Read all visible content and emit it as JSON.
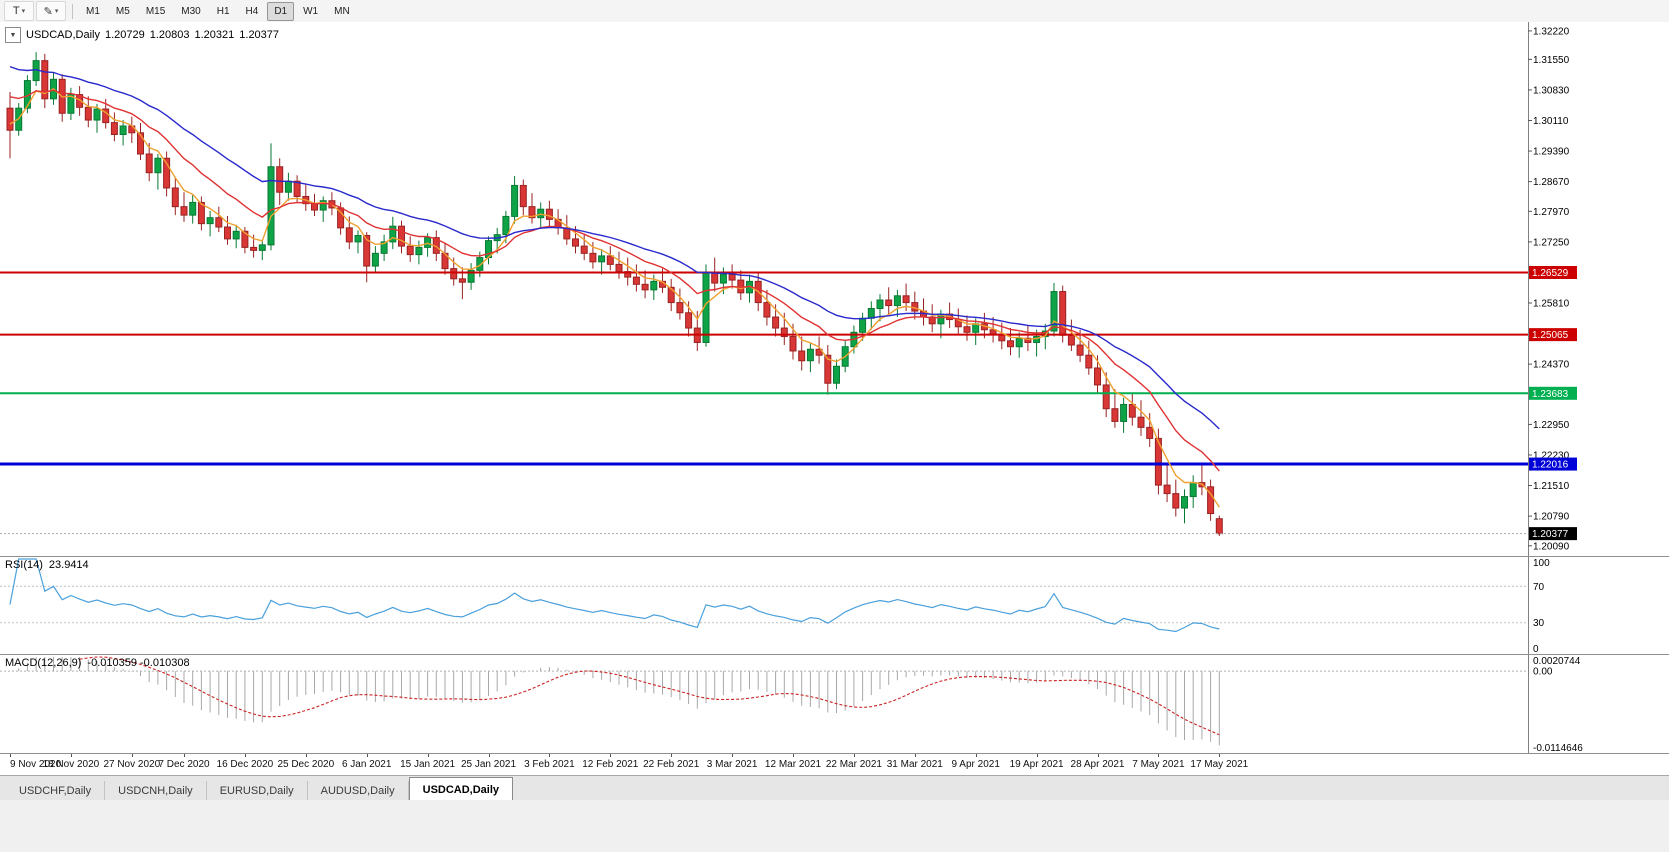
{
  "toolbar": {
    "tool_buttons": [
      {
        "name": "chart-tool-button",
        "icon": "chart-tool-icon",
        "glyph": "T",
        "caret": "▾"
      },
      {
        "name": "draw-tool-button",
        "icon": "pencil-icon",
        "glyph": "✎",
        "caret": "▾"
      }
    ],
    "timeframes": [
      "M1",
      "M5",
      "M15",
      "M30",
      "H1",
      "H4",
      "D1",
      "W1",
      "MN"
    ],
    "active_timeframe": "D1"
  },
  "symbol_bar": {
    "collapse_icon": "▼",
    "symbol": "USDCAD,Daily",
    "open": "1.20729",
    "high": "1.20803",
    "low": "1.20321",
    "close": "1.20377"
  },
  "indicators": {
    "rsi": {
      "label": "RSI(14)",
      "value": "23.9414",
      "color": "#4aa0dc",
      "levels": [
        {
          "text": "100",
          "value": 100
        },
        {
          "text": "70",
          "value": 70
        },
        {
          "text": "30",
          "value": 30
        },
        {
          "text": "0",
          "value": 0
        }
      ]
    },
    "macd": {
      "label": "MACD(12,26,9)",
      "values": "-0.010359 -0.010308",
      "signal_color": "#cc2222",
      "hist_color": "#a8a8a8",
      "axis": [
        {
          "text": "0.0020744",
          "value": 0.0020744
        },
        {
          "text": "0.00",
          "value": 0
        },
        {
          "text": "-0.0114646",
          "value": -0.0114646
        }
      ]
    }
  },
  "tabs": {
    "items": [
      {
        "label": "USDCHF,Daily",
        "active": false
      },
      {
        "label": "USDCNH,Daily",
        "active": false
      },
      {
        "label": "EURUSD,Daily",
        "active": false
      },
      {
        "label": "AUDUSD,Daily",
        "active": false
      },
      {
        "label": "USDCAD,Daily",
        "active": true
      }
    ]
  },
  "chart_data": {
    "type": "candlestick",
    "symbol": "USDCAD",
    "timeframe": "Daily",
    "last_quote": {
      "open": 1.20729,
      "high": 1.20803,
      "low": 1.20321,
      "close": 1.20377
    },
    "y_axis": {
      "min": 1.1985,
      "max": 1.3243,
      "ticks": [
        "1.32220",
        "1.31550",
        "1.30830",
        "1.30110",
        "1.29390",
        "1.28670",
        "1.27970",
        "1.27250",
        "1.25810",
        "1.24370",
        "1.22950",
        "1.22230",
        "1.21510",
        "1.20790",
        "1.20090"
      ]
    },
    "x_axis": {
      "labels": [
        {
          "text": "9 Nov 2020",
          "index": 0
        },
        {
          "text": "18 Nov 2020",
          "index": 7
        },
        {
          "text": "27 Nov 2020",
          "index": 14
        },
        {
          "text": "7 Dec 2020",
          "index": 20
        },
        {
          "text": "16 Dec 2020",
          "index": 27
        },
        {
          "text": "25 Dec 2020",
          "index": 34
        },
        {
          "text": "6 Jan 2021",
          "index": 41
        },
        {
          "text": "15 Jan 2021",
          "index": 48
        },
        {
          "text": "25 Jan 2021",
          "index": 55
        },
        {
          "text": "3 Feb 2021",
          "index": 62
        },
        {
          "text": "12 Feb 2021",
          "index": 69
        },
        {
          "text": "22 Feb 2021",
          "index": 76
        },
        {
          "text": "3 Mar 2021",
          "index": 83
        },
        {
          "text": "12 Mar 2021",
          "index": 90
        },
        {
          "text": "22 Mar 2021",
          "index": 97
        },
        {
          "text": "31 Mar 2021",
          "index": 104
        },
        {
          "text": "9 Apr 2021",
          "index": 111
        },
        {
          "text": "19 Apr 2021",
          "index": 118
        },
        {
          "text": "28 Apr 2021",
          "index": 125
        },
        {
          "text": "7 May 2021",
          "index": 132
        },
        {
          "text": "17 May 2021",
          "index": 139
        }
      ]
    },
    "horizontal_lines": [
      {
        "type": "level",
        "value": 1.26529,
        "label": "1.26529",
        "color": "#cc0000",
        "width": 2
      },
      {
        "type": "level",
        "value": 1.25065,
        "label": "1.25065",
        "color": "#cc0000",
        "width": 2
      },
      {
        "type": "level",
        "value": 1.23683,
        "label": "1.23683",
        "color": "#00b050",
        "width": 2
      },
      {
        "type": "level",
        "value": 1.22016,
        "label": "1.22016",
        "color": "#0000d8",
        "width": 3
      },
      {
        "type": "current",
        "value": 1.20377,
        "label": "1.20377",
        "color": "#aaaaaa",
        "badge_color": "#000000",
        "width": 1
      }
    ],
    "moving_averages": [
      {
        "name": "ma-fast",
        "period": 5,
        "color": "#f0a030",
        "seed": 1.301
      },
      {
        "name": "ma-mid",
        "period": 13,
        "color": "#e03232",
        "seed": 1.308
      },
      {
        "name": "ma-slow",
        "period": 26,
        "color": "#2929cc",
        "seed": 1.315
      }
    ],
    "rsi_period": 14,
    "macd": {
      "fast": 12,
      "slow": 26,
      "signal": 9,
      "range": [
        -0.0114646,
        0.0020744
      ]
    },
    "colors": {
      "up": "#0fa348",
      "up_stroke": "#077a33",
      "down": "#d93636",
      "down_stroke": "#992222"
    },
    "candles": [
      [
        1.304,
        1.3078,
        1.2922,
        1.2988
      ],
      [
        1.2988,
        1.3052,
        1.2975,
        1.304
      ],
      [
        1.304,
        1.3118,
        1.3028,
        1.3105
      ],
      [
        1.3105,
        1.3172,
        1.3092,
        1.3152
      ],
      [
        1.3152,
        1.3168,
        1.304,
        1.3062
      ],
      [
        1.3062,
        1.3125,
        1.3048,
        1.3108
      ],
      [
        1.3108,
        1.312,
        1.3008,
        1.3028
      ],
      [
        1.3028,
        1.3088,
        1.3012,
        1.3072
      ],
      [
        1.3072,
        1.3092,
        1.3022,
        1.3042
      ],
      [
        1.3042,
        1.3068,
        1.2995,
        1.3012
      ],
      [
        1.3012,
        1.305,
        1.2982,
        1.3038
      ],
      [
        1.3038,
        1.3062,
        1.2992,
        1.3006
      ],
      [
        1.3006,
        1.303,
        1.2962,
        1.2978
      ],
      [
        1.2978,
        1.3012,
        1.2952,
        1.2998
      ],
      [
        1.2998,
        1.302,
        1.2958,
        1.2982
      ],
      [
        1.2982,
        1.3005,
        1.2918,
        1.2932
      ],
      [
        1.2932,
        1.2958,
        1.2868,
        1.2888
      ],
      [
        1.2888,
        1.2932,
        1.2848,
        1.2922
      ],
      [
        1.2922,
        1.2938,
        1.2832,
        1.2852
      ],
      [
        1.2852,
        1.2878,
        1.2788,
        1.2808
      ],
      [
        1.2808,
        1.2842,
        1.2772,
        1.2788
      ],
      [
        1.2788,
        1.2836,
        1.2768,
        1.2818
      ],
      [
        1.2818,
        1.2832,
        1.2752,
        1.2768
      ],
      [
        1.2768,
        1.2798,
        1.2738,
        1.2782
      ],
      [
        1.2782,
        1.2808,
        1.2748,
        1.276
      ],
      [
        1.276,
        1.2786,
        1.2718,
        1.2732
      ],
      [
        1.2732,
        1.2765,
        1.271,
        1.275
      ],
      [
        1.275,
        1.276,
        1.2698,
        1.2712
      ],
      [
        1.2712,
        1.2742,
        1.2688,
        1.2705
      ],
      [
        1.2705,
        1.2728,
        1.2682,
        1.2718
      ],
      [
        1.2718,
        1.2957,
        1.2705,
        1.2902
      ],
      [
        1.2902,
        1.2922,
        1.2812,
        1.2842
      ],
      [
        1.2842,
        1.2888,
        1.2822,
        1.2868
      ],
      [
        1.2868,
        1.2882,
        1.2818,
        1.2832
      ],
      [
        1.2832,
        1.286,
        1.2798,
        1.2815
      ],
      [
        1.2815,
        1.2838,
        1.2786,
        1.28
      ],
      [
        1.28,
        1.2832,
        1.2772,
        1.2822
      ],
      [
        1.2822,
        1.2842,
        1.2788,
        1.2805
      ],
      [
        1.2805,
        1.2818,
        1.2742,
        1.2758
      ],
      [
        1.2758,
        1.2785,
        1.2708,
        1.2725
      ],
      [
        1.2725,
        1.2752,
        1.2698,
        1.274
      ],
      [
        1.274,
        1.2748,
        1.263,
        1.2668
      ],
      [
        1.2668,
        1.2715,
        1.2652,
        1.2698
      ],
      [
        1.2698,
        1.2742,
        1.268,
        1.2725
      ],
      [
        1.2725,
        1.2784,
        1.2708,
        1.2762
      ],
      [
        1.2762,
        1.2775,
        1.2698,
        1.2715
      ],
      [
        1.2715,
        1.2738,
        1.2678,
        1.2695
      ],
      [
        1.2695,
        1.2728,
        1.2672,
        1.2712
      ],
      [
        1.2712,
        1.2745,
        1.269,
        1.2735
      ],
      [
        1.2735,
        1.2752,
        1.268,
        1.2698
      ],
      [
        1.2698,
        1.2722,
        1.2648,
        1.2662
      ],
      [
        1.2662,
        1.2688,
        1.2622,
        1.2638
      ],
      [
        1.2638,
        1.2665,
        1.259,
        1.263
      ],
      [
        1.263,
        1.2675,
        1.2612,
        1.2658
      ],
      [
        1.2658,
        1.2702,
        1.2642,
        1.2688
      ],
      [
        1.2688,
        1.2738,
        1.2672,
        1.2728
      ],
      [
        1.2728,
        1.2758,
        1.2698,
        1.2742
      ],
      [
        1.2742,
        1.2798,
        1.2722,
        1.2785
      ],
      [
        1.2785,
        1.288,
        1.2768,
        1.2858
      ],
      [
        1.2858,
        1.2872,
        1.2788,
        1.2808
      ],
      [
        1.2808,
        1.284,
        1.2768,
        1.2782
      ],
      [
        1.2782,
        1.2818,
        1.2758,
        1.2802
      ],
      [
        1.2802,
        1.2822,
        1.2762,
        1.2778
      ],
      [
        1.2778,
        1.2802,
        1.2742,
        1.2758
      ],
      [
        1.2758,
        1.2788,
        1.2718,
        1.2732
      ],
      [
        1.2732,
        1.2762,
        1.2698,
        1.2715
      ],
      [
        1.2715,
        1.2742,
        1.2682,
        1.2698
      ],
      [
        1.2698,
        1.2725,
        1.2662,
        1.2678
      ],
      [
        1.2678,
        1.2708,
        1.2648,
        1.2692
      ],
      [
        1.2692,
        1.2715,
        1.2658,
        1.2672
      ],
      [
        1.2672,
        1.2702,
        1.2638,
        1.2655
      ],
      [
        1.2655,
        1.2688,
        1.2622,
        1.2642
      ],
      [
        1.2642,
        1.2672,
        1.2608,
        1.2625
      ],
      [
        1.2625,
        1.2658,
        1.2592,
        1.2612
      ],
      [
        1.2612,
        1.2648,
        1.2588,
        1.2632
      ],
      [
        1.2632,
        1.2662,
        1.2605,
        1.2618
      ],
      [
        1.2618,
        1.2638,
        1.2562,
        1.2582
      ],
      [
        1.2582,
        1.2615,
        1.2542,
        1.2558
      ],
      [
        1.2558,
        1.2585,
        1.2502,
        1.2522
      ],
      [
        1.2522,
        1.2562,
        1.2468,
        1.2488
      ],
      [
        1.2488,
        1.2672,
        1.2478,
        1.2652
      ],
      [
        1.2652,
        1.2688,
        1.2608,
        1.2628
      ],
      [
        1.2628,
        1.2665,
        1.2602,
        1.2648
      ],
      [
        1.2648,
        1.2672,
        1.2615,
        1.2635
      ],
      [
        1.2635,
        1.2658,
        1.2588,
        1.2605
      ],
      [
        1.2605,
        1.2648,
        1.2582,
        1.2632
      ],
      [
        1.2632,
        1.2652,
        1.2562,
        1.2582
      ],
      [
        1.2582,
        1.2612,
        1.2528,
        1.2548
      ],
      [
        1.2548,
        1.2578,
        1.2502,
        1.2522
      ],
      [
        1.2522,
        1.2558,
        1.2482,
        1.2502
      ],
      [
        1.2502,
        1.2532,
        1.2448,
        1.2468
      ],
      [
        1.2468,
        1.2502,
        1.2422,
        1.2445
      ],
      [
        1.2445,
        1.2488,
        1.2418,
        1.2472
      ],
      [
        1.2472,
        1.2502,
        1.2438,
        1.2458
      ],
      [
        1.2458,
        1.2482,
        1.2365,
        1.2392
      ],
      [
        1.2392,
        1.2448,
        1.2378,
        1.2432
      ],
      [
        1.2432,
        1.2492,
        1.2418,
        1.2478
      ],
      [
        1.2478,
        1.2528,
        1.2462,
        1.2512
      ],
      [
        1.2512,
        1.2558,
        1.2492,
        1.2545
      ],
      [
        1.2545,
        1.2585,
        1.2518,
        1.2568
      ],
      [
        1.2568,
        1.2602,
        1.2538,
        1.2588
      ],
      [
        1.2588,
        1.2618,
        1.2555,
        1.2575
      ],
      [
        1.2575,
        1.2612,
        1.2548,
        1.2598
      ],
      [
        1.2598,
        1.2627,
        1.2562,
        1.2582
      ],
      [
        1.2582,
        1.2608,
        1.2542,
        1.2562
      ],
      [
        1.2562,
        1.2592,
        1.2528,
        1.2548
      ],
      [
        1.2548,
        1.2578,
        1.2512,
        1.2532
      ],
      [
        1.2532,
        1.2565,
        1.2498,
        1.2555
      ],
      [
        1.2555,
        1.2582,
        1.2522,
        1.2542
      ],
      [
        1.2542,
        1.2568,
        1.2505,
        1.2525
      ],
      [
        1.2525,
        1.2552,
        1.2492,
        1.2512
      ],
      [
        1.2512,
        1.2545,
        1.2482,
        1.2532
      ],
      [
        1.2532,
        1.2558,
        1.2498,
        1.2518
      ],
      [
        1.2518,
        1.2548,
        1.2488,
        1.2508
      ],
      [
        1.2508,
        1.2535,
        1.2472,
        1.2492
      ],
      [
        1.2492,
        1.2522,
        1.2458,
        1.2478
      ],
      [
        1.2478,
        1.2512,
        1.2452,
        1.2498
      ],
      [
        1.2498,
        1.2528,
        1.2468,
        1.2488
      ],
      [
        1.2488,
        1.2518,
        1.2455,
        1.2502
      ],
      [
        1.2502,
        1.2532,
        1.2472,
        1.2515
      ],
      [
        1.2515,
        1.2628,
        1.2502,
        1.2608
      ],
      [
        1.2608,
        1.2622,
        1.2488,
        1.2505
      ],
      [
        1.2505,
        1.2542,
        1.2468,
        1.2482
      ],
      [
        1.2482,
        1.2518,
        1.2442,
        1.2458
      ],
      [
        1.2458,
        1.2492,
        1.2412,
        1.2428
      ],
      [
        1.2428,
        1.2458,
        1.2368,
        1.2388
      ],
      [
        1.2388,
        1.2418,
        1.2312,
        1.2332
      ],
      [
        1.2332,
        1.2378,
        1.2287,
        1.2302
      ],
      [
        1.2302,
        1.2358,
        1.2275,
        1.2342
      ],
      [
        1.2342,
        1.2368,
        1.2292,
        1.2312
      ],
      [
        1.2312,
        1.2352,
        1.2268,
        1.2288
      ],
      [
        1.2288,
        1.2322,
        1.2242,
        1.2262
      ],
      [
        1.2262,
        1.2285,
        1.213,
        1.2152
      ],
      [
        1.2152,
        1.2198,
        1.2112,
        1.2132
      ],
      [
        1.2132,
        1.2165,
        1.2078,
        1.2098
      ],
      [
        1.2098,
        1.2142,
        1.2062,
        1.2125
      ],
      [
        1.2125,
        1.2175,
        1.2098,
        1.2158
      ],
      [
        1.2158,
        1.2202,
        1.2128,
        1.2148
      ],
      [
        1.2148,
        1.2165,
        1.2068,
        1.2085
      ],
      [
        1.20729,
        1.20803,
        1.20321,
        1.20377
      ]
    ]
  }
}
